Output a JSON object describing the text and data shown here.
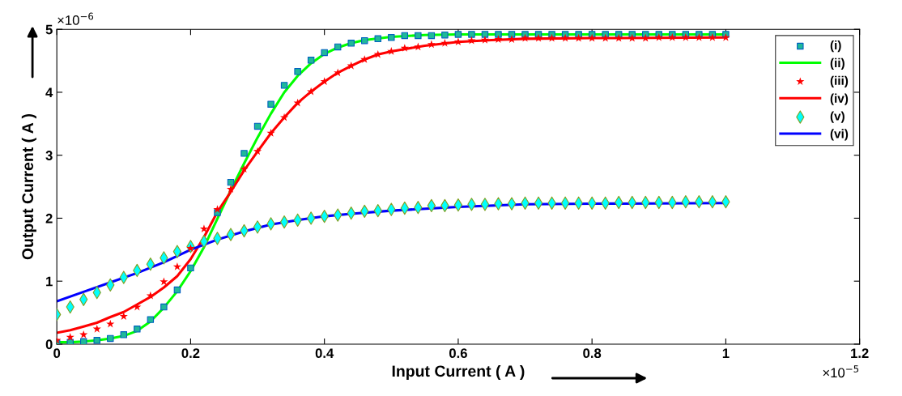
{
  "chart_data": {
    "type": "line",
    "xlabel": "Input Current ( A )",
    "ylabel": "Output Current ( A )",
    "annotations": [
      "×10$^{−6}$",
      "×10$^{−5}$"
    ],
    "xlim": [
      0,
      1.2
    ],
    "ylim": [
      0,
      5
    ],
    "xticks": [
      0,
      0.2,
      0.4,
      0.6,
      0.8,
      1,
      1.2
    ],
    "yticks": [
      0,
      1,
      2,
      3,
      4,
      5
    ],
    "grid": false,
    "legend": "top right",
    "series": [
      {
        "name": "(i)",
        "type": "scatter",
        "marker": "square",
        "color": "#1fb89a",
        "x": [
          0,
          0.02,
          0.04,
          0.06,
          0.08,
          0.1,
          0.12,
          0.14,
          0.16,
          0.18,
          0.2,
          0.22,
          0.24,
          0.26,
          0.28,
          0.3,
          0.32,
          0.34,
          0.36,
          0.38,
          0.4,
          0.42,
          0.44,
          0.46,
          0.48,
          0.5,
          0.52,
          0.54,
          0.56,
          0.58,
          0.6,
          0.62,
          0.64,
          0.66,
          0.68,
          0.7,
          0.72,
          0.74,
          0.76,
          0.78,
          0.8,
          0.82,
          0.84,
          0.86,
          0.88,
          0.9,
          0.92,
          0.94,
          0.96,
          0.98,
          1
        ],
        "values": [
          0.02,
          0.03,
          0.04,
          0.06,
          0.09,
          0.15,
          0.24,
          0.39,
          0.59,
          0.86,
          1.21,
          null,
          2.09,
          2.57,
          3.03,
          3.46,
          3.81,
          4.11,
          4.33,
          4.51,
          4.63,
          4.72,
          4.78,
          4.82,
          4.85,
          4.87,
          4.9,
          4.9,
          4.9,
          4.91,
          4.92,
          4.92,
          4.92,
          4.92,
          4.92,
          4.92,
          4.92,
          4.92,
          4.92,
          4.92,
          4.92,
          4.92,
          4.92,
          4.92,
          4.92,
          4.92,
          4.92,
          4.92,
          4.92,
          4.92,
          4.92
        ]
      },
      {
        "name": "(ii)",
        "type": "line",
        "marker": "none",
        "color": "#00ff00",
        "x": [
          0,
          0.02,
          0.04,
          0.06,
          0.08,
          0.1,
          0.12,
          0.14,
          0.16,
          0.18,
          0.2,
          0.22,
          0.24,
          0.26,
          0.28,
          0.3,
          0.32,
          0.34,
          0.36,
          0.38,
          0.4,
          0.42,
          0.44,
          0.46,
          0.5,
          0.55,
          0.6,
          0.8,
          1
        ],
        "values": [
          0.03,
          0.03,
          0.04,
          0.06,
          0.09,
          0.13,
          0.21,
          0.36,
          0.58,
          0.84,
          1.16,
          1.54,
          1.99,
          2.44,
          2.87,
          3.28,
          3.66,
          4.0,
          4.26,
          4.46,
          4.61,
          4.71,
          4.78,
          4.83,
          4.88,
          4.91,
          4.92,
          4.92,
          4.92
        ]
      },
      {
        "name": "(iii)",
        "type": "scatter",
        "marker": "star",
        "color": "#ff0000",
        "x": [
          0,
          0.02,
          0.04,
          0.06,
          0.08,
          0.1,
          0.12,
          0.14,
          0.16,
          0.18,
          0.2,
          0.22,
          0.24,
          0.26,
          0.28,
          0.3,
          0.32,
          0.34,
          0.36,
          0.38,
          0.4,
          0.42,
          0.44,
          0.46,
          0.48,
          0.5,
          0.52,
          0.54,
          0.56,
          0.58,
          0.6,
          0.62,
          0.64,
          0.66,
          0.68,
          0.7,
          0.72,
          0.74,
          0.76,
          0.78,
          0.8,
          0.82,
          0.84,
          0.86,
          0.88,
          0.9,
          0.92,
          0.94,
          0.96,
          0.98,
          1
        ],
        "values": [
          0.06,
          0.11,
          0.15,
          0.24,
          0.32,
          0.44,
          0.59,
          0.77,
          0.99,
          1.23,
          1.52,
          1.83,
          2.14,
          2.46,
          2.78,
          3.06,
          3.35,
          3.6,
          3.83,
          4.01,
          4.17,
          4.31,
          4.42,
          4.52,
          4.6,
          4.65,
          4.7,
          4.72,
          4.76,
          4.78,
          4.8,
          4.82,
          4.83,
          4.84,
          4.84,
          4.86,
          4.86,
          4.86,
          4.86,
          4.86,
          4.86,
          4.86,
          4.86,
          4.86,
          4.86,
          4.87,
          4.87,
          4.87,
          4.87,
          4.87,
          4.87
        ]
      },
      {
        "name": "(iv)",
        "type": "line",
        "marker": "none",
        "color": "#ff0000",
        "x": [
          0,
          0.02,
          0.04,
          0.06,
          0.08,
          0.1,
          0.12,
          0.14,
          0.16,
          0.18,
          0.2,
          0.22,
          0.24,
          0.26,
          0.28,
          0.3,
          0.32,
          0.34,
          0.36,
          0.38,
          0.4,
          0.42,
          0.44,
          0.46,
          0.48,
          0.5,
          0.55,
          0.6,
          0.65,
          0.7,
          0.8,
          1
        ],
        "values": [
          0.18,
          0.22,
          0.28,
          0.34,
          0.43,
          0.51,
          0.63,
          0.75,
          0.9,
          1.08,
          1.35,
          1.7,
          2.1,
          2.42,
          2.76,
          3.06,
          3.35,
          3.6,
          3.83,
          4.01,
          4.17,
          4.31,
          4.42,
          4.52,
          4.6,
          4.65,
          4.74,
          4.8,
          4.83,
          4.85,
          4.86,
          4.87
        ]
      },
      {
        "name": "(v)",
        "type": "scatter",
        "marker": "diamond",
        "color": "#00ffff",
        "x": [
          0,
          0.02,
          0.04,
          0.06,
          0.08,
          0.1,
          0.12,
          0.14,
          0.16,
          0.18,
          0.2,
          0.22,
          0.24,
          0.26,
          0.28,
          0.3,
          0.32,
          0.34,
          0.36,
          0.38,
          0.4,
          0.42,
          0.44,
          0.46,
          0.48,
          0.5,
          0.52,
          0.54,
          0.56,
          0.58,
          0.6,
          0.62,
          0.64,
          0.66,
          0.68,
          0.7,
          0.72,
          0.74,
          0.76,
          0.78,
          0.8,
          0.82,
          0.84,
          0.86,
          0.88,
          0.9,
          0.92,
          0.94,
          0.96,
          0.98,
          1
        ],
        "values": [
          0.47,
          0.59,
          0.71,
          0.82,
          0.94,
          1.06,
          1.17,
          1.27,
          1.37,
          1.47,
          1.55,
          1.63,
          1.68,
          1.74,
          1.8,
          1.86,
          1.91,
          1.94,
          1.97,
          2.0,
          2.03,
          2.05,
          2.08,
          2.11,
          2.12,
          2.14,
          2.16,
          2.17,
          2.2,
          2.2,
          2.21,
          2.22,
          2.22,
          2.23,
          2.23,
          2.24,
          2.24,
          2.24,
          2.24,
          2.24,
          2.24,
          2.24,
          2.25,
          2.25,
          2.25,
          2.25,
          2.25,
          2.26,
          2.26,
          2.26,
          2.26
        ]
      },
      {
        "name": "(vi)",
        "type": "line",
        "marker": "none",
        "color": "#0000ff",
        "x": [
          0,
          0.04,
          0.08,
          0.12,
          0.16,
          0.2,
          0.24,
          0.28,
          0.32,
          0.36,
          0.4,
          0.44,
          0.5,
          0.6,
          0.7,
          0.8,
          1
        ],
        "values": [
          0.68,
          0.83,
          0.98,
          1.13,
          1.3,
          1.5,
          1.66,
          1.79,
          1.9,
          1.97,
          2.03,
          2.07,
          2.12,
          2.18,
          2.22,
          2.23,
          2.24
        ]
      }
    ]
  }
}
